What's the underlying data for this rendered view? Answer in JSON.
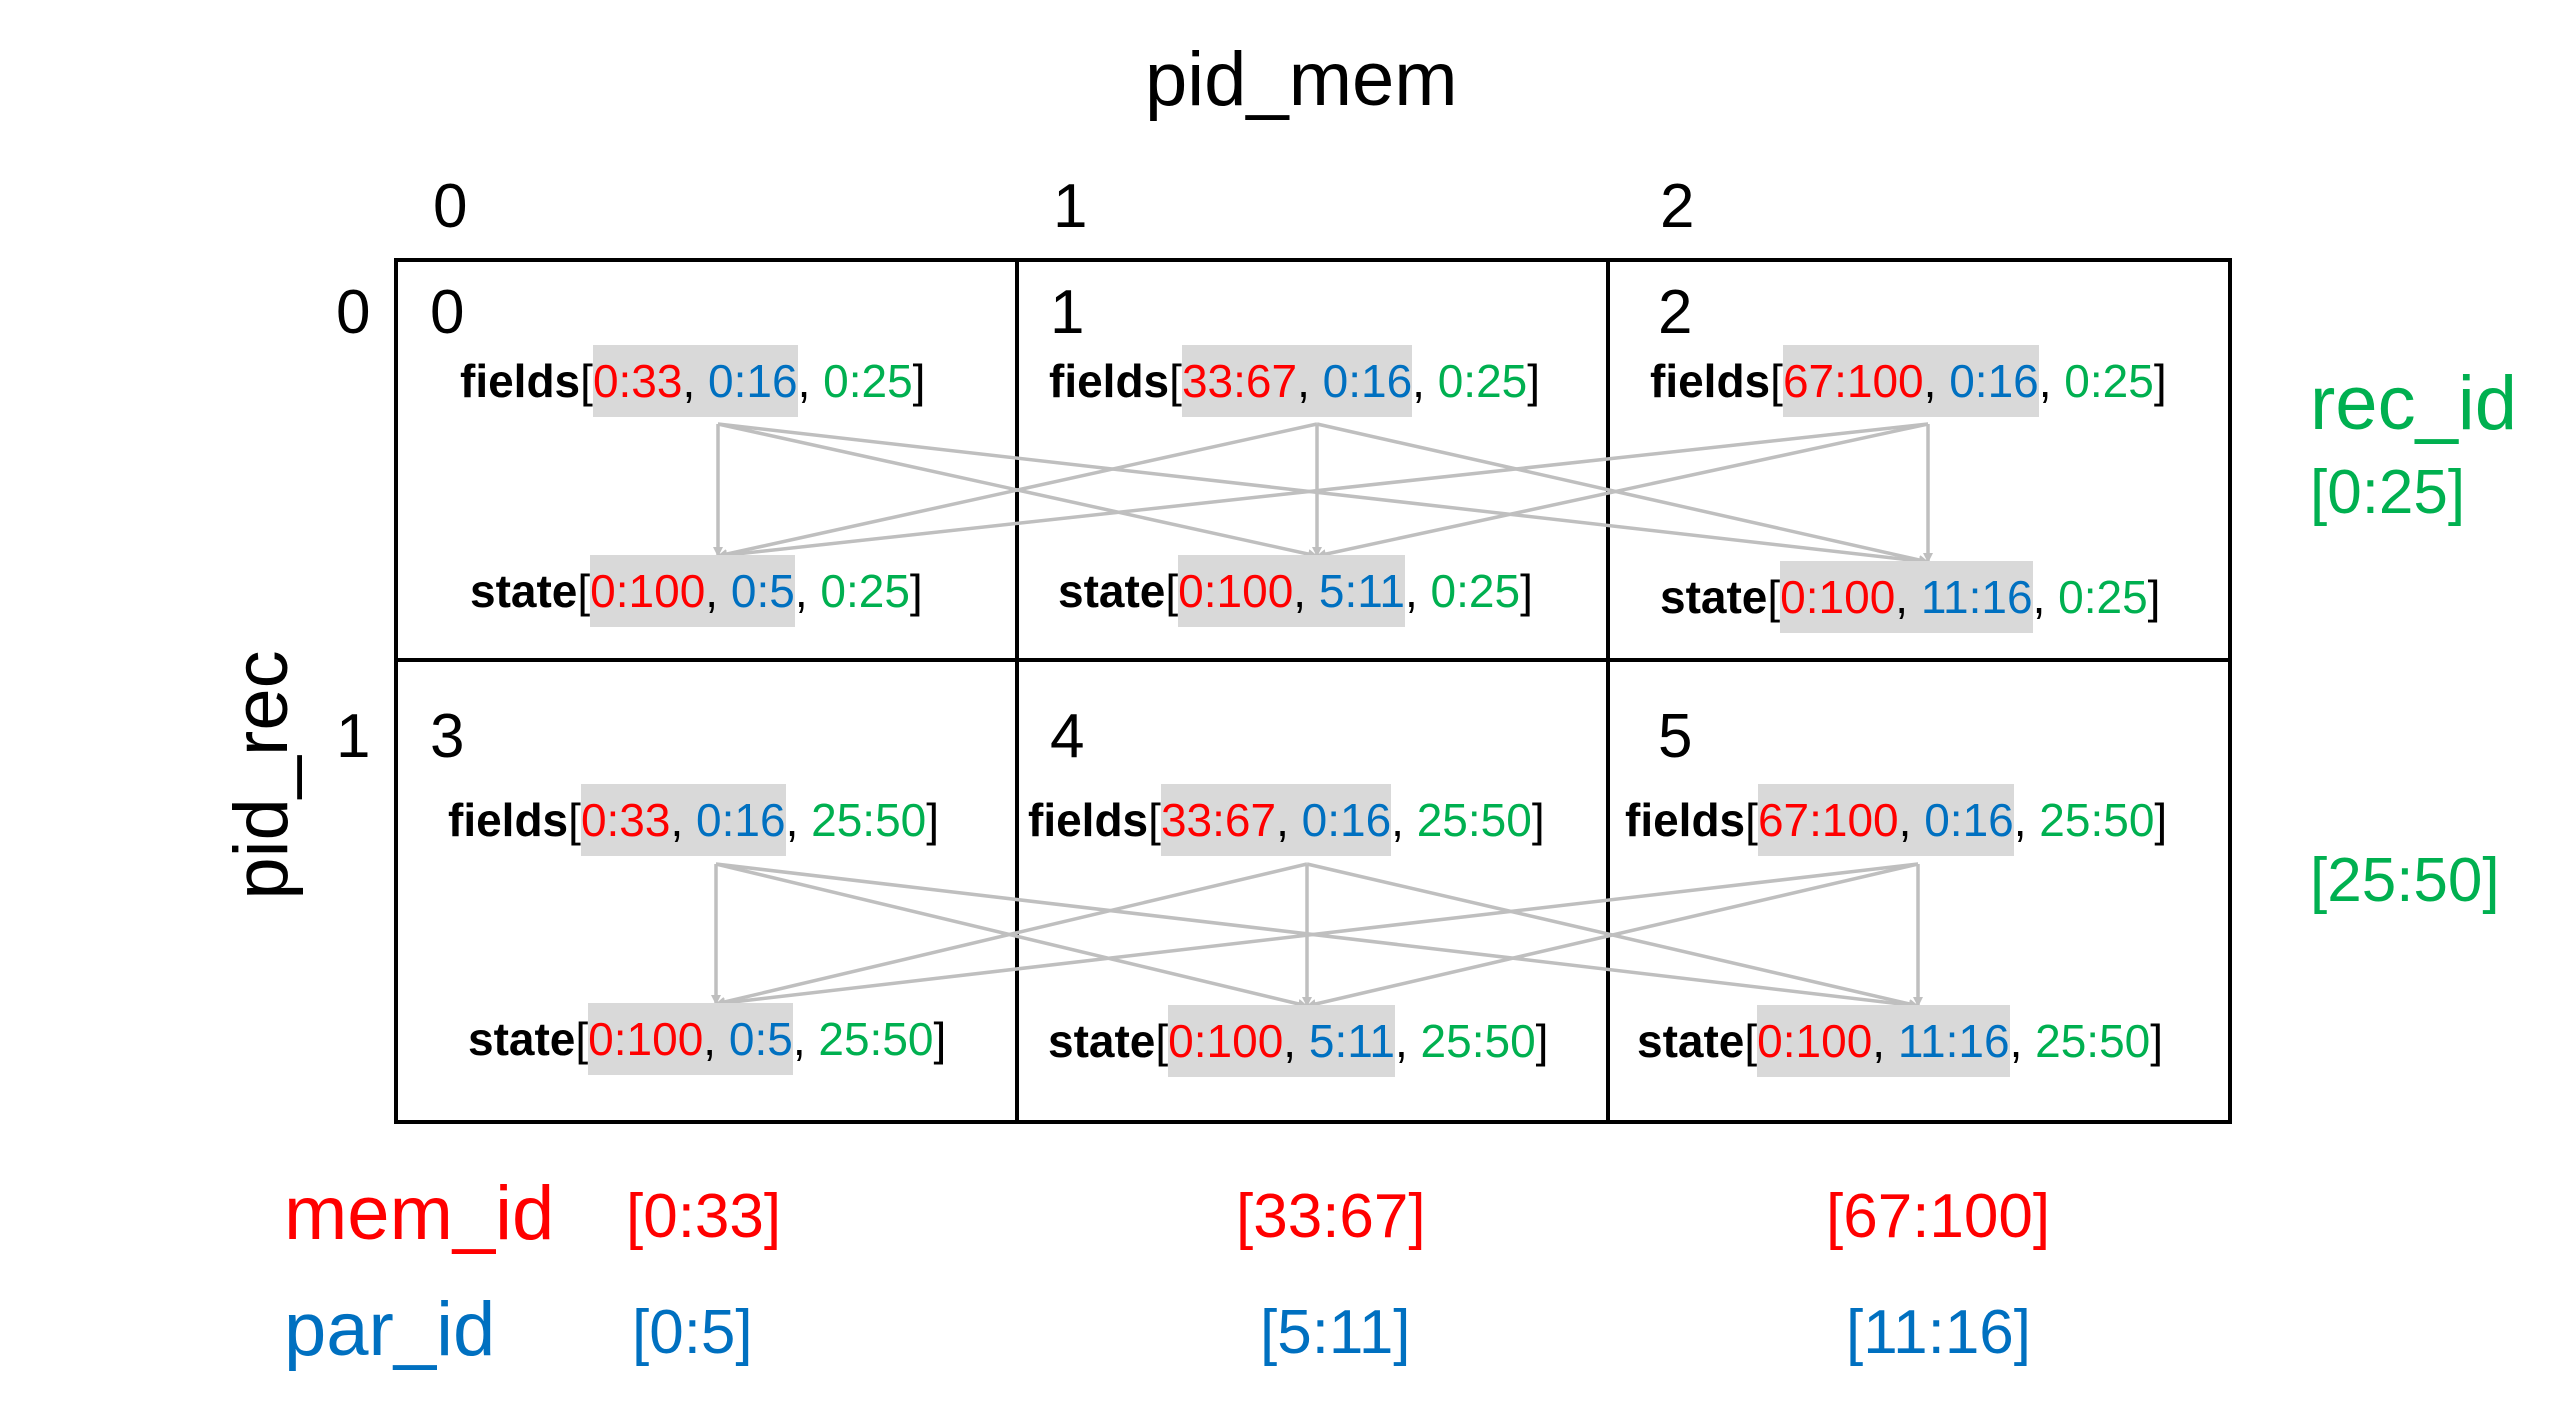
{
  "colors": {
    "mem": "#ff0000",
    "par": "#0070c0",
    "rec": "#00b050",
    "arrow": "#bfbfbf",
    "highlight": "#d9d9d9"
  },
  "titles": {
    "pid_mem": "pid_mem",
    "pid_rec": "pid_rec"
  },
  "col_labels": [
    "0",
    "1",
    "2"
  ],
  "row_labels": [
    "0",
    "1"
  ],
  "cells": [
    {
      "id": "0",
      "fields": {
        "name": "fields",
        "open": "[",
        "mem": "0:33",
        "c1": ", ",
        "par": "0:16",
        "c2": ", ",
        "rec": "0:25",
        "close": "]"
      },
      "state": {
        "name": "state",
        "open": "[",
        "mem": "0:100",
        "c1": ", ",
        "par": "0:5",
        "c2": ", ",
        "rec": "0:25",
        "close": "]"
      }
    },
    {
      "id": "1",
      "fields": {
        "name": "fields",
        "open": "[",
        "mem": "33:67",
        "c1": ", ",
        "par": "0:16",
        "c2": ", ",
        "rec": "0:25",
        "close": "]"
      },
      "state": {
        "name": "state",
        "open": "[",
        "mem": "0:100",
        "c1": ", ",
        "par": "5:11",
        "c2": ", ",
        "rec": "0:25",
        "close": "]"
      }
    },
    {
      "id": "2",
      "fields": {
        "name": "fields",
        "open": "[",
        "mem": "67:100",
        "c1": ", ",
        "par": "0:16",
        "c2": ", ",
        "rec": "0:25",
        "close": "]"
      },
      "state": {
        "name": "state",
        "open": "[",
        "mem": "0:100",
        "c1": ", ",
        "par": "11:16",
        "c2": ", ",
        "rec": "0:25",
        "close": "]"
      }
    },
    {
      "id": "3",
      "fields": {
        "name": "fields",
        "open": "[",
        "mem": "0:33",
        "c1": ", ",
        "par": "0:16",
        "c2": ", ",
        "rec": "25:50",
        "close": "]"
      },
      "state": {
        "name": "state",
        "open": "[",
        "mem": "0:100",
        "c1": ", ",
        "par": "0:5",
        "c2": ", ",
        "rec": "25:50",
        "close": "]"
      }
    },
    {
      "id": "4",
      "fields": {
        "name": "fields",
        "open": "[",
        "mem": "33:67",
        "c1": ", ",
        "par": "0:16",
        "c2": ", ",
        "rec": "25:50",
        "close": "]"
      },
      "state": {
        "name": "state",
        "open": "[",
        "mem": "0:100",
        "c1": ", ",
        "par": "5:11",
        "c2": ", ",
        "rec": "25:50",
        "close": "]"
      }
    },
    {
      "id": "5",
      "fields": {
        "name": "fields",
        "open": "[",
        "mem": "67:100",
        "c1": ", ",
        "par": "0:16",
        "c2": ", ",
        "rec": "25:50",
        "close": "]"
      },
      "state": {
        "name": "state",
        "open": "[",
        "mem": "0:100",
        "c1": ", ",
        "par": "11:16",
        "c2": ", ",
        "rec": "25:50",
        "close": "]"
      }
    }
  ],
  "rec_id": {
    "label": "rec_id",
    "ranges": [
      "[0:25]",
      "[25:50]"
    ]
  },
  "mem_id": {
    "label": "mem_id",
    "ranges": [
      "[0:33]",
      "[33:67]",
      "[67:100]"
    ]
  },
  "par_id": {
    "label": "par_id",
    "ranges": [
      "[0:5]",
      "[5:11]",
      "[11:16]"
    ]
  }
}
